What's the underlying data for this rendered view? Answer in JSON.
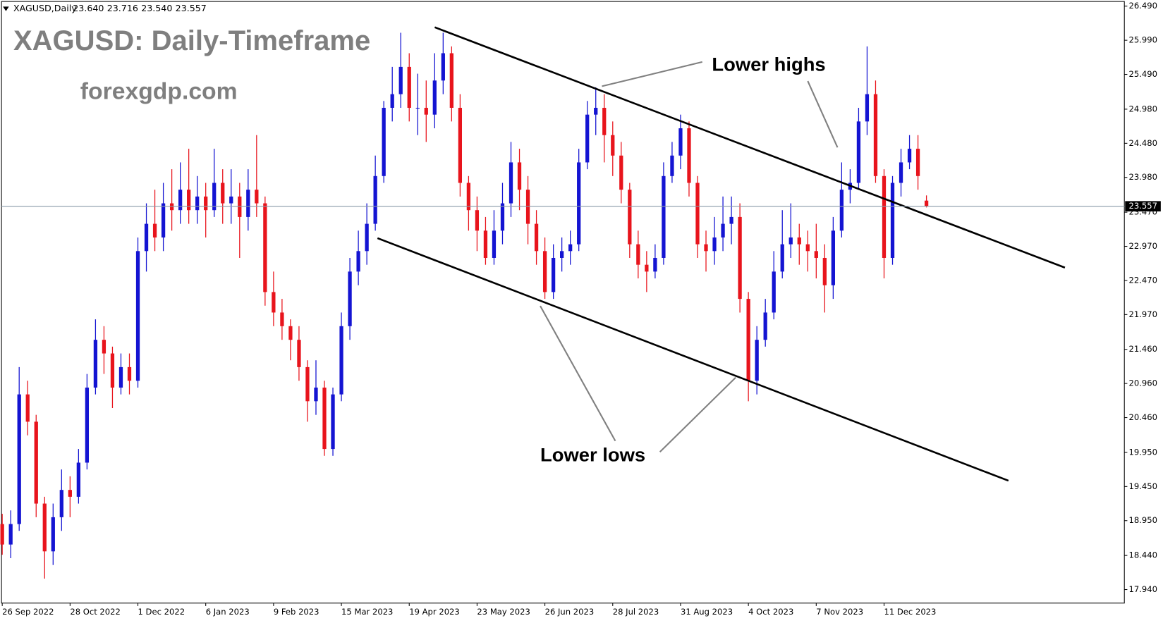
{
  "chart_data": {
    "type": "candlestick",
    "title": "XAGUSD: Daily-Timeframe",
    "subtitle": "forexgdp.com",
    "symbol": "XAGUSD,Daily",
    "ohlc_labels": [
      "23.640",
      "23.716",
      "23.540",
      "23.557"
    ],
    "annotations": [
      "Lower highs",
      "Lower lows"
    ],
    "categories": [
      "26 Sep 2022",
      null,
      null,
      null,
      null,
      null,
      null,
      null,
      "28 Oct 2022",
      null,
      null,
      null,
      null,
      null,
      null,
      null,
      "1 Dec 2022",
      null,
      null,
      null,
      null,
      null,
      null,
      null,
      "6 Jan 2023",
      null,
      null,
      null,
      null,
      null,
      null,
      null,
      "9 Feb 2023",
      null,
      null,
      null,
      null,
      null,
      null,
      null,
      "15 Mar 2023",
      null,
      null,
      null,
      null,
      null,
      null,
      null,
      "19 Apr 2023",
      null,
      null,
      null,
      null,
      null,
      null,
      null,
      "23 May 2023",
      null,
      null,
      null,
      null,
      null,
      null,
      null,
      "26 Jun 2023",
      null,
      null,
      null,
      null,
      null,
      null,
      null,
      "28 Jul 2023",
      null,
      null,
      null,
      null,
      null,
      null,
      null,
      "31 Aug 2023",
      null,
      null,
      null,
      null,
      null,
      null,
      null,
      "4 Oct 2023",
      null,
      null,
      null,
      null,
      null,
      null,
      null,
      "7 Nov 2023",
      null,
      null,
      null,
      null,
      null,
      null,
      null,
      "11 Dec 2023",
      null,
      null,
      null,
      null,
      null
    ],
    "series": [
      {
        "up_color": "#1414d2",
        "down_color": "#e8141c",
        "open": [
          18.9,
          18.6,
          18.9,
          20.8,
          20.4,
          19.2,
          18.5,
          19.0,
          19.4,
          19.3,
          19.8,
          20.9,
          21.6,
          21.4,
          20.9,
          21.2,
          21.0,
          22.9,
          23.3,
          23.1,
          23.6,
          23.5,
          23.8,
          23.5,
          23.7,
          23.5,
          23.9,
          23.6,
          23.7,
          23.4,
          23.8,
          23.6,
          22.3,
          22.0,
          21.8,
          21.6,
          21.2,
          20.7,
          20.9,
          20.0,
          20.8,
          21.8,
          22.6,
          22.9,
          23.3,
          24.0,
          25.0,
          25.2,
          25.6,
          25.0,
          25.0,
          24.9,
          25.4,
          25.8,
          25.0,
          23.9,
          23.5,
          23.2,
          22.8,
          23.2,
          23.6,
          24.2,
          23.8,
          23.3,
          22.9,
          22.3,
          22.8,
          22.9,
          23.0,
          24.2,
          24.9,
          25.0,
          24.6,
          24.3,
          23.8,
          23.0,
          22.7,
          22.6,
          22.8,
          24.0,
          24.3,
          24.7,
          23.9,
          23.0,
          22.9,
          23.1,
          23.3,
          23.4,
          22.2,
          21.0,
          21.6,
          22.0,
          22.6,
          23.0,
          23.1,
          23.0,
          22.9,
          22.8,
          22.4,
          23.2,
          23.8,
          23.9,
          24.8,
          25.2,
          24.0,
          22.8,
          23.9,
          24.2,
          24.4,
          23.64
        ],
        "high": [
          19.05,
          19.1,
          21.2,
          21.0,
          20.5,
          19.3,
          19.2,
          19.7,
          19.6,
          20.0,
          21.1,
          21.9,
          21.8,
          21.5,
          21.4,
          21.4,
          23.1,
          23.6,
          23.8,
          23.9,
          24.1,
          24.2,
          24.4,
          24.0,
          23.9,
          24.4,
          24.1,
          24.1,
          23.9,
          24.1,
          24.6,
          23.7,
          22.6,
          22.2,
          21.9,
          21.8,
          21.3,
          21.3,
          21.0,
          20.9,
          22.0,
          22.8,
          23.2,
          23.6,
          24.3,
          25.1,
          25.6,
          26.1,
          25.8,
          25.5,
          25.4,
          25.8,
          26.1,
          25.9,
          25.2,
          24.0,
          23.7,
          23.4,
          23.5,
          23.9,
          24.5,
          24.4,
          24.0,
          23.5,
          23.1,
          23.0,
          23.1,
          23.2,
          24.4,
          25.1,
          25.3,
          25.2,
          24.8,
          24.5,
          23.9,
          23.2,
          22.9,
          23.0,
          24.2,
          24.5,
          24.9,
          24.8,
          24.0,
          23.2,
          23.4,
          23.7,
          23.7,
          23.6,
          22.3,
          21.8,
          22.2,
          22.9,
          23.5,
          23.6,
          23.3,
          23.2,
          23.3,
          23.0,
          23.4,
          24.2,
          24.1,
          25.0,
          25.9,
          25.4,
          24.1,
          24.0,
          24.4,
          24.6,
          24.6,
          23.716
        ],
        "low": [
          18.45,
          18.4,
          18.8,
          20.2,
          19.0,
          18.1,
          18.3,
          18.8,
          19.0,
          19.2,
          19.7,
          20.8,
          21.1,
          20.6,
          20.8,
          20.8,
          20.9,
          22.6,
          22.9,
          22.9,
          23.2,
          23.3,
          23.3,
          23.3,
          23.1,
          23.4,
          23.3,
          23.3,
          22.8,
          23.2,
          23.4,
          22.1,
          21.8,
          21.6,
          21.3,
          21.0,
          20.4,
          20.5,
          19.9,
          19.9,
          20.7,
          21.6,
          22.4,
          22.7,
          23.2,
          23.9,
          24.8,
          25.0,
          24.8,
          24.6,
          24.5,
          24.7,
          25.2,
          24.8,
          23.7,
          23.2,
          22.9,
          22.7,
          22.7,
          23.0,
          23.4,
          23.5,
          23.0,
          22.7,
          22.2,
          22.2,
          22.6,
          22.7,
          22.9,
          24.1,
          24.6,
          24.2,
          24.0,
          23.6,
          22.8,
          22.5,
          22.3,
          22.5,
          22.7,
          23.9,
          24.1,
          23.7,
          22.8,
          22.6,
          22.7,
          22.9,
          23.0,
          22.0,
          20.7,
          20.8,
          21.5,
          21.9,
          22.5,
          22.8,
          22.7,
          22.6,
          22.5,
          22.0,
          22.2,
          23.1,
          23.6,
          23.8,
          24.6,
          23.9,
          22.5,
          22.7,
          23.7,
          24.1,
          23.8,
          23.54
        ],
        "close": [
          18.6,
          18.9,
          20.8,
          20.4,
          19.2,
          18.5,
          19.0,
          19.4,
          19.3,
          19.8,
          20.9,
          21.6,
          21.4,
          20.9,
          21.2,
          21.0,
          22.9,
          23.3,
          23.1,
          23.6,
          23.5,
          23.8,
          23.5,
          23.7,
          23.5,
          23.9,
          23.6,
          23.7,
          23.4,
          23.8,
          23.6,
          22.3,
          22.0,
          21.8,
          21.6,
          21.2,
          20.7,
          20.9,
          20.0,
          20.8,
          21.8,
          22.6,
          22.9,
          23.3,
          24.0,
          25.0,
          25.2,
          25.6,
          25.0,
          25.0,
          24.9,
          25.4,
          25.8,
          25.0,
          23.9,
          23.5,
          23.2,
          22.8,
          23.2,
          23.6,
          24.2,
          23.8,
          23.3,
          22.9,
          22.3,
          22.8,
          22.9,
          23.0,
          24.2,
          24.9,
          25.0,
          24.6,
          24.3,
          23.8,
          23.0,
          22.7,
          22.6,
          22.8,
          24.0,
          24.3,
          24.7,
          23.9,
          23.0,
          22.9,
          23.1,
          23.3,
          23.4,
          22.2,
          21.0,
          21.6,
          22.0,
          22.6,
          23.0,
          23.1,
          23.0,
          22.9,
          22.8,
          22.4,
          23.2,
          23.8,
          23.9,
          24.8,
          25.2,
          24.0,
          22.8,
          23.9,
          24.2,
          24.4,
          24.0,
          23.557
        ]
      }
    ],
    "ylim": [
      17.72,
      26.58
    ],
    "yticks": [
      {
        "value": 26.49,
        "label": "26.490"
      },
      {
        "value": 25.99,
        "label": "25.990"
      },
      {
        "value": 25.49,
        "label": "25.490"
      },
      {
        "value": 24.98,
        "label": "24.980"
      },
      {
        "value": 24.48,
        "label": "24.480"
      },
      {
        "value": 23.98,
        "label": "23.980"
      },
      {
        "value": 23.47,
        "label": "23.470"
      },
      {
        "value": 22.97,
        "label": "22.970"
      },
      {
        "value": 22.47,
        "label": "22.470"
      },
      {
        "value": 21.97,
        "label": "21.970"
      },
      {
        "value": 21.46,
        "label": "21.460"
      },
      {
        "value": 20.96,
        "label": "20.960"
      },
      {
        "value": 20.46,
        "label": "20.460"
      },
      {
        "value": 19.95,
        "label": "19.950"
      },
      {
        "value": 19.45,
        "label": "19.450"
      },
      {
        "value": 18.95,
        "label": "18.950"
      },
      {
        "value": 18.44,
        "label": "18.440"
      },
      {
        "value": 17.94,
        "label": "17.940"
      }
    ],
    "price_line": {
      "value": 23.557,
      "label": "23.557"
    }
  }
}
